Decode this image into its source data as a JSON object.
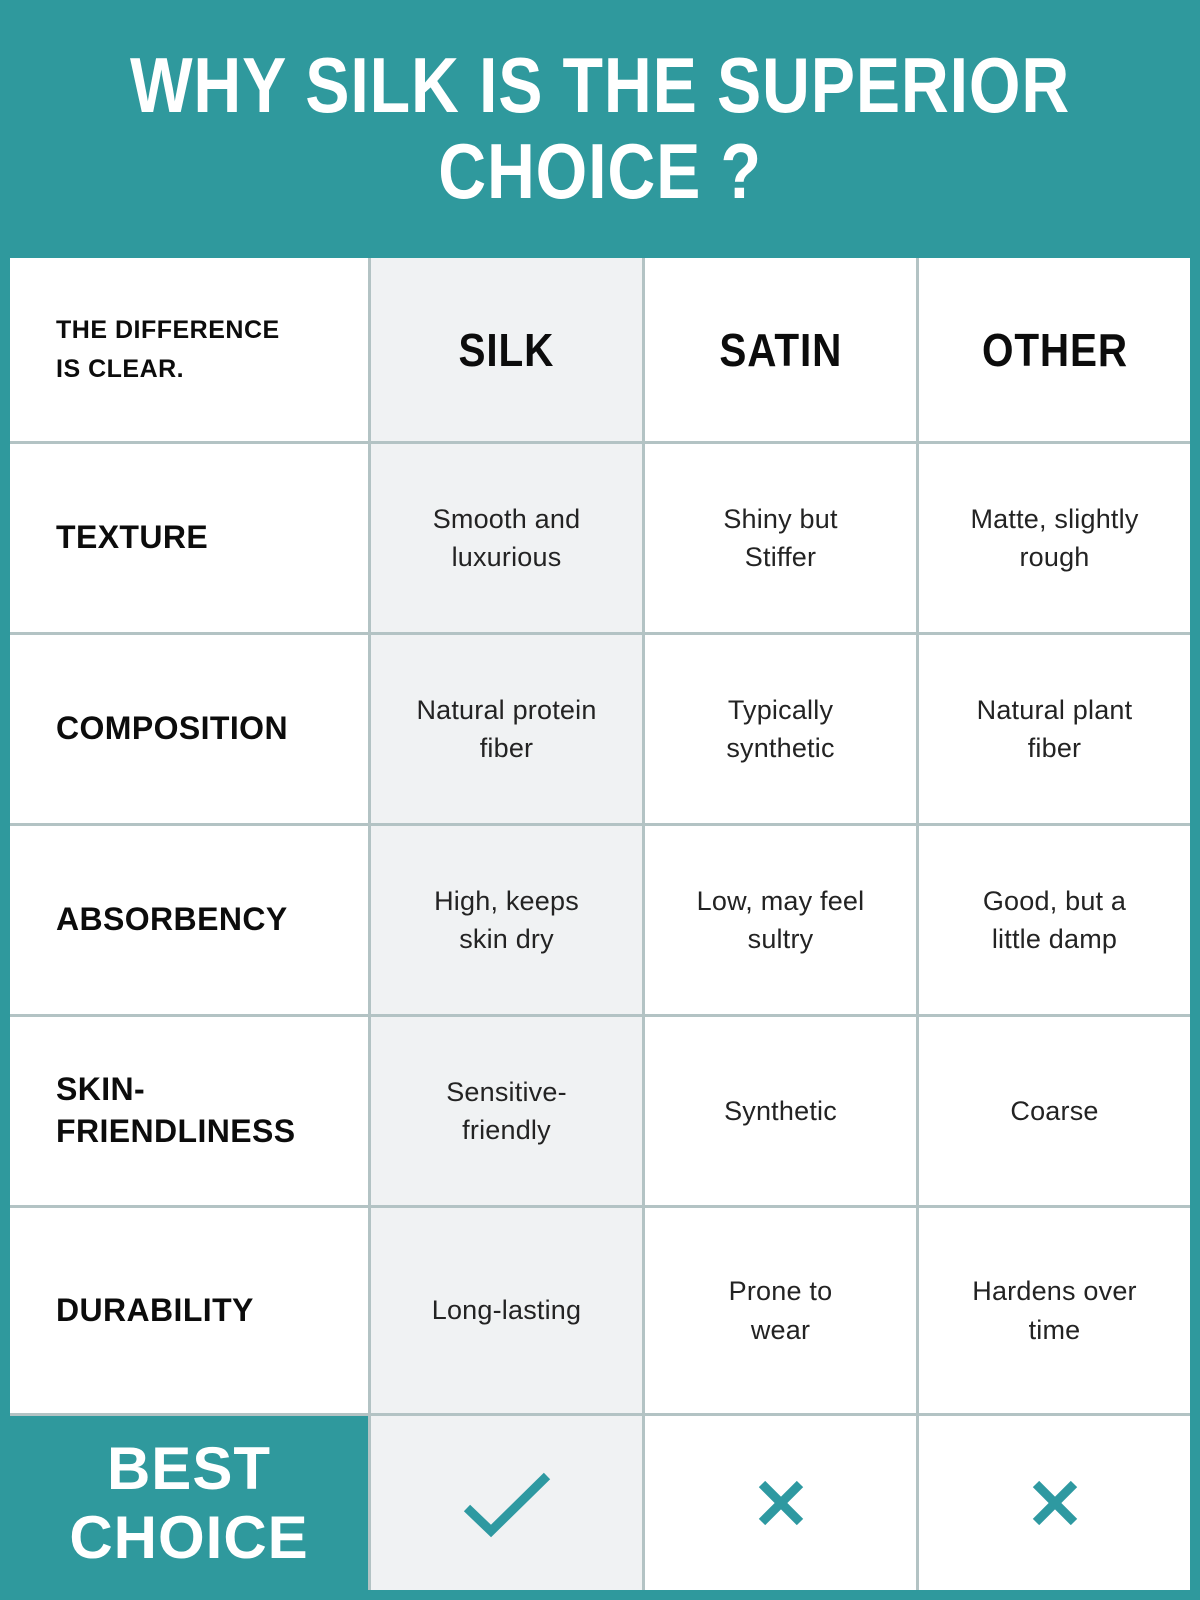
{
  "theme": {
    "teal": "#2F999D",
    "mark_teal": "#2E99A1",
    "grid_line": "#B3C3C4",
    "silk_column_bg": "#F0F2F3"
  },
  "header": {
    "title": "WHY SILK IS THE SUPERIOR\nCHOICE ?"
  },
  "table": {
    "corner_note": "THE DIFFERENCE\nIS CLEAR.",
    "columns": [
      "SILK",
      "SATIN",
      "OTHER"
    ],
    "rows": [
      {
        "label": "TEXTURE",
        "silk": "Smooth and\nluxurious",
        "satin": "Shiny but\nStiffer",
        "other": "Matte, slightly\nrough"
      },
      {
        "label": "COMPOSITION",
        "silk": "Natural protein\nfiber",
        "satin": "Typically\nsynthetic",
        "other": "Natural plant\nfiber"
      },
      {
        "label": "ABSORBENCY",
        "silk": "High, keeps\nskin dry",
        "satin": "Low, may feel\nsultry",
        "other": "Good, but a\nlittle damp"
      },
      {
        "label": "SKIN-\nFRIENDLINESS",
        "silk": "Sensitive-\nfriendly",
        "satin": "Synthetic",
        "other": "Coarse"
      },
      {
        "label": "DURABILITY",
        "silk": "Long-lasting",
        "satin": "Prone to\nwear",
        "other": "Hardens over\ntime"
      }
    ],
    "verdict": {
      "label": "BEST\nCHOICE",
      "marks": {
        "silk": "check",
        "satin": "cross",
        "other": "cross"
      }
    }
  },
  "chart_data": {
    "type": "table",
    "title": "WHY SILK IS THE SUPERIOR CHOICE ?",
    "columns": [
      "THE DIFFERENCE IS CLEAR.",
      "SILK",
      "SATIN",
      "OTHER"
    ],
    "rows": [
      [
        "TEXTURE",
        "Smooth and luxurious",
        "Shiny but Stiffer",
        "Matte, slightly rough"
      ],
      [
        "COMPOSITION",
        "Natural protein fiber",
        "Typically synthetic",
        "Natural plant fiber"
      ],
      [
        "ABSORBENCY",
        "High, keeps skin dry",
        "Low, may feel sultry",
        "Good, but a little damp"
      ],
      [
        "SKIN-FRIENDLINESS",
        "Sensitive-friendly",
        "Synthetic",
        "Coarse"
      ],
      [
        "DURABILITY",
        "Long-lasting",
        "Prone to wear",
        "Hardens over time"
      ],
      [
        "BEST CHOICE",
        "check",
        "cross",
        "cross"
      ]
    ],
    "highlighted_column": "SILK",
    "layout": {
      "grid": true,
      "header_position": "top"
    }
  }
}
